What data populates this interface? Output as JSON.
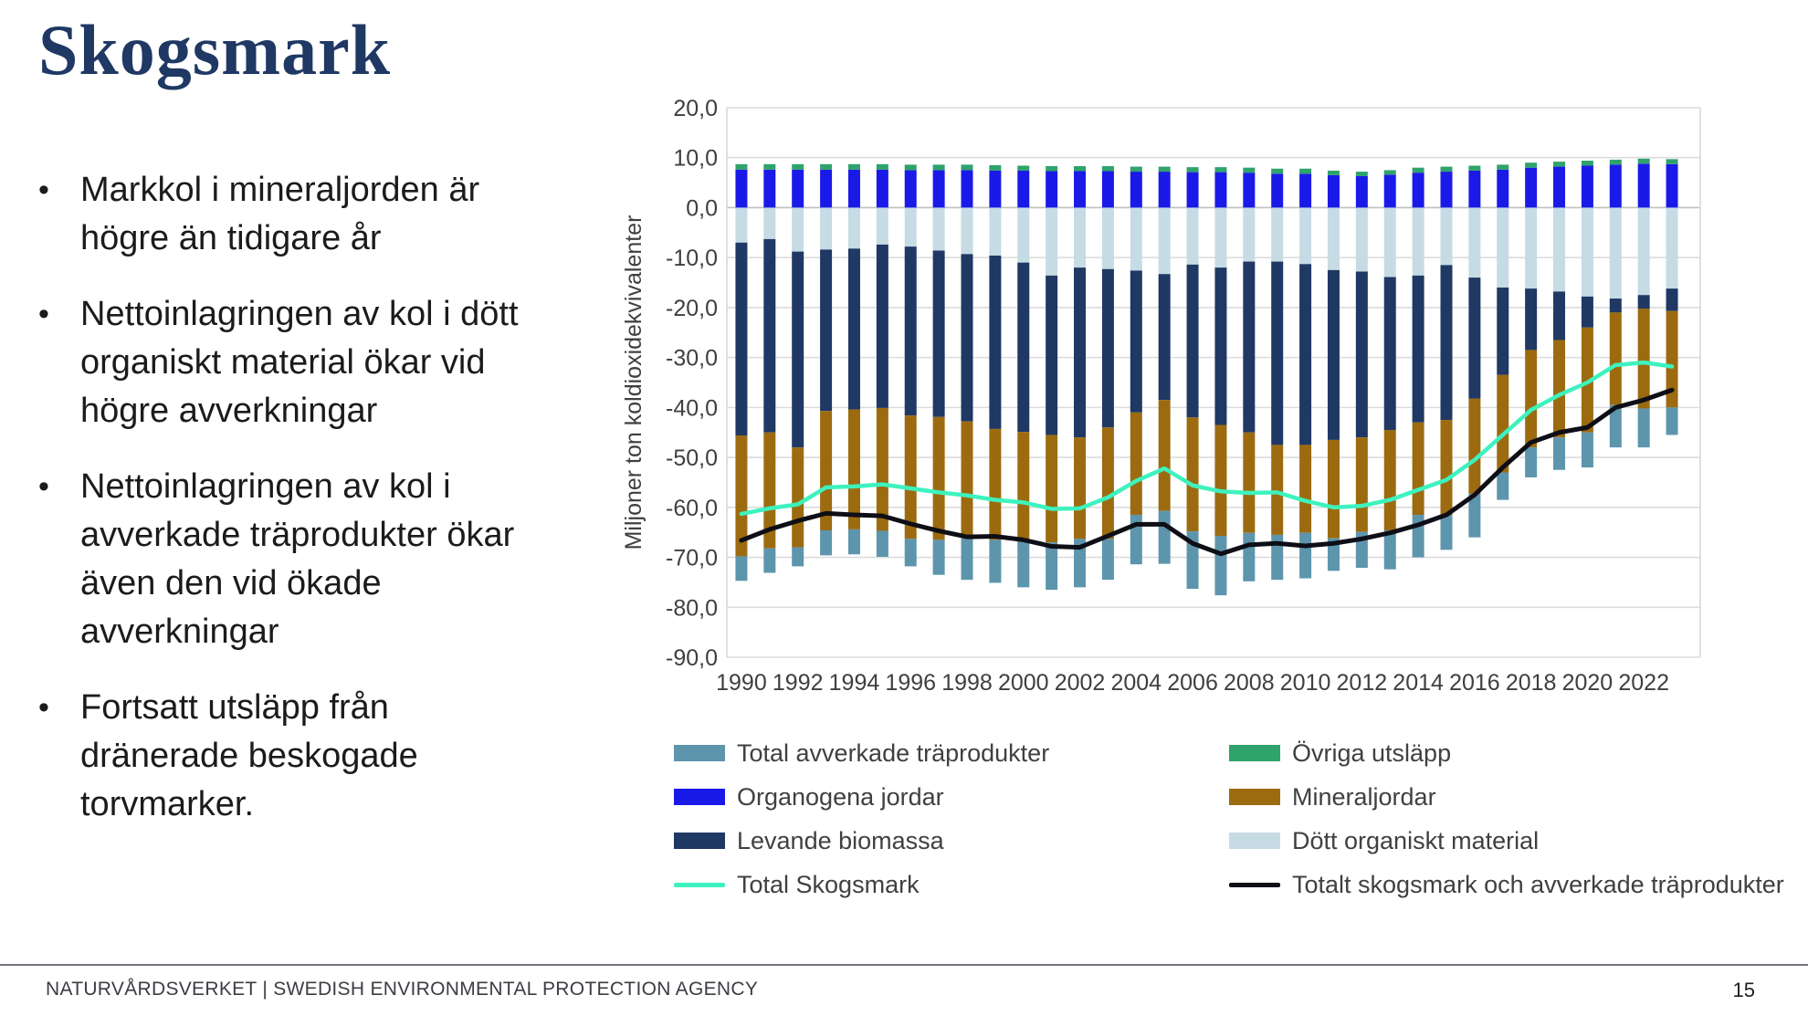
{
  "slide": {
    "title": "Skogsmark",
    "bullets": [
      "Markkol i mineraljorden är högre än tidigare år",
      "Nettoinlagringen av kol i dött organiskt material ökar vid högre avverkningar",
      "Nettoinlagringen av kol i avverkade träprodukter ökar även den vid ökade avverkningar",
      "Fortsatt utsläpp från dränerade beskogade torvmarker."
    ],
    "footer": {
      "left": "NATURVÅRDSVERKET | SWEDISH ENVIRONMENTAL PROTECTION AGENCY",
      "page": "15"
    }
  },
  "chart_data": {
    "type": "bar",
    "stacked": true,
    "ylabel": "Miljoner ton koldioxidekvivalenter",
    "ylim": [
      -90,
      20
    ],
    "ytick_step": 10,
    "grid": true,
    "colors": {
      "grid": "#dcdcdc",
      "zero_line": "#c0c0c0",
      "plot_border": "#d9d9d9",
      "tick_text": "#3f3f3f"
    },
    "years": [
      1990,
      1991,
      1992,
      1993,
      1994,
      1995,
      1996,
      1997,
      1998,
      1999,
      2000,
      2001,
      2002,
      2003,
      2004,
      2005,
      2006,
      2007,
      2008,
      2009,
      2010,
      2011,
      2012,
      2013,
      2014,
      2015,
      2016,
      2017,
      2018,
      2019,
      2020,
      2021,
      2022,
      2023
    ],
    "xtick_labels": [
      "1990",
      "1992",
      "1994",
      "1996",
      "1998",
      "2000",
      "2002",
      "2004",
      "2006",
      "2008",
      "2010",
      "2012",
      "2014",
      "2016",
      "2018",
      "2020",
      "2022"
    ],
    "series": [
      {
        "name": "Organogena jordar",
        "kind": "bar",
        "color": "#1a1ae8",
        "values": [
          7.6,
          7.6,
          7.6,
          7.6,
          7.6,
          7.6,
          7.5,
          7.5,
          7.5,
          7.4,
          7.4,
          7.3,
          7.3,
          7.3,
          7.2,
          7.2,
          7.1,
          7.1,
          7.0,
          6.8,
          6.8,
          6.5,
          6.3,
          6.6,
          7.0,
          7.2,
          7.4,
          7.6,
          8.0,
          8.2,
          8.4,
          8.6,
          8.8,
          8.7
        ]
      },
      {
        "name": "Övriga utsläpp",
        "kind": "bar",
        "color": "#2ea36c",
        "values": [
          1.1,
          1.1,
          1.1,
          1.1,
          1.1,
          1.1,
          1.1,
          1.1,
          1.1,
          1.1,
          1.0,
          1.0,
          1.0,
          1.0,
          1.0,
          1.0,
          1.0,
          1.0,
          1.0,
          1.0,
          1.0,
          0.9,
          0.9,
          0.9,
          1.0,
          1.0,
          1.0,
          1.0,
          1.0,
          1.0,
          1.0,
          1.0,
          1.0,
          1.0
        ]
      },
      {
        "name": "Dött organiskt material",
        "kind": "bar",
        "color": "#c6dbe4",
        "values": [
          -7.0,
          -6.3,
          -8.8,
          -8.4,
          -8.2,
          -7.4,
          -7.8,
          -8.6,
          -9.3,
          -9.6,
          -11.0,
          -13.6,
          -12.0,
          -12.3,
          -12.6,
          -13.3,
          -11.4,
          -12.0,
          -10.8,
          -10.8,
          -11.3,
          -12.5,
          -12.8,
          -13.9,
          -13.6,
          -11.5,
          -14.0,
          -16.0,
          -16.2,
          -16.8,
          -17.8,
          -18.2,
          -17.5,
          -16.2
        ]
      },
      {
        "name": "Levande biomassa",
        "kind": "bar",
        "color": "#1f3864",
        "values": [
          -38.6,
          -38.7,
          -39.2,
          -32.3,
          -32.2,
          -32.7,
          -33.8,
          -33.3,
          -33.5,
          -34.7,
          -33.9,
          -31.9,
          -34.0,
          -31.7,
          -28.4,
          -25.2,
          -30.6,
          -31.5,
          -34.2,
          -36.7,
          -36.2,
          -34.0,
          -33.2,
          -30.6,
          -29.4,
          -31.0,
          -24.2,
          -17.5,
          -12.3,
          -9.7,
          -6.2,
          -2.8,
          -2.7,
          -4.5
        ]
      },
      {
        "name": "Mineraljordar",
        "kind": "bar",
        "color": "#9c6b10",
        "values": [
          -24.2,
          -23.2,
          -20.0,
          -23.9,
          -24.0,
          -24.6,
          -24.7,
          -24.6,
          -23.4,
          -22.2,
          -21.9,
          -21.5,
          -20.3,
          -22.3,
          -20.5,
          -22.2,
          -22.8,
          -22.2,
          -20.1,
          -18.0,
          -17.6,
          -19.7,
          -18.9,
          -20.1,
          -18.5,
          -19.0,
          -19.1,
          -19.5,
          -19.5,
          -19.5,
          -21.0,
          -18.5,
          -20.0,
          -19.3
        ]
      },
      {
        "name": "Total avverkade träprodukter",
        "kind": "bar",
        "color": "#5d95ac",
        "values": [
          -4.9,
          -4.9,
          -3.8,
          -5.0,
          -5.0,
          -5.2,
          -5.5,
          -7.0,
          -8.3,
          -8.6,
          -9.2,
          -9.5,
          -9.7,
          -8.2,
          -9.9,
          -10.6,
          -11.5,
          -11.9,
          -9.7,
          -9.0,
          -9.1,
          -6.5,
          -7.2,
          -7.8,
          -8.5,
          -7.0,
          -8.7,
          -5.5,
          -6.0,
          -6.5,
          -7.0,
          -8.5,
          -7.8,
          -5.5
        ]
      },
      {
        "name": "Total Skogsmark",
        "kind": "line",
        "color": "#3df2be",
        "values": [
          -61.3,
          -60.2,
          -59.4,
          -56.0,
          -55.8,
          -55.4,
          -56.2,
          -57.0,
          -57.6,
          -58.5,
          -59.0,
          -60.3,
          -60.2,
          -58.0,
          -54.7,
          -52.2,
          -55.6,
          -56.8,
          -57.1,
          -57.0,
          -58.7,
          -60.0,
          -59.7,
          -58.5,
          -56.5,
          -54.5,
          -50.5,
          -45.5,
          -40.5,
          -37.5,
          -35.0,
          -31.5,
          -31.0,
          -31.8
        ]
      },
      {
        "name": "Totalt skogsmark och avverkade träprodukter",
        "kind": "line",
        "color": "#0e0e16",
        "values": [
          -66.6,
          -64.4,
          -62.7,
          -61.2,
          -61.5,
          -61.7,
          -63.3,
          -64.7,
          -65.9,
          -65.8,
          -66.5,
          -67.8,
          -68.0,
          -65.7,
          -63.4,
          -63.4,
          -67.2,
          -69.3,
          -67.5,
          -67.2,
          -67.7,
          -67.2,
          -66.3,
          -65.1,
          -63.5,
          -61.5,
          -57.5,
          -52.0,
          -47.0,
          -45.0,
          -44.0,
          -40.0,
          -38.5,
          -36.5
        ]
      }
    ],
    "legend": {
      "columns": [
        [
          "Total avverkade träprodukter",
          "Organogena jordar",
          "Levande biomassa",
          "Total Skogsmark"
        ],
        [
          "Övriga utsläpp",
          "Mineraljordar",
          "Dött organiskt material",
          "Totalt skogsmark och avverkade träprodukter"
        ]
      ]
    }
  }
}
